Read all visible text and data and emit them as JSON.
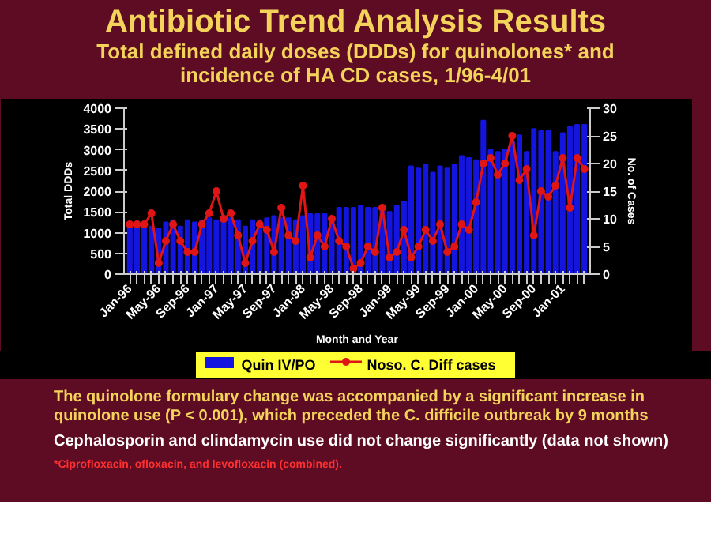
{
  "chart_data": {
    "type": "bar",
    "title": "Antibiotic Trend Analysis Results",
    "subtitle": "Total defined daily doses (DDDs) for quinolones* and incidence of HA CD cases, 1/96-4/01",
    "xlabel": "Month and Year",
    "ylabel": "Total DDDs",
    "y2label": "No. of Cases",
    "categories": [
      "Jan-96",
      null,
      null,
      null,
      "May-96",
      null,
      null,
      null,
      "Sep-96",
      null,
      null,
      null,
      "Jan-97",
      null,
      null,
      null,
      "May-97",
      null,
      null,
      null,
      "Sep-97",
      null,
      null,
      null,
      "Jan-98",
      null,
      null,
      null,
      "May-98",
      null,
      null,
      null,
      "Sep-98",
      null,
      null,
      null,
      "Jan-99",
      null,
      null,
      null,
      "May-99",
      null,
      null,
      null,
      "Sep-99",
      null,
      null,
      null,
      "Jan-00",
      null,
      null,
      null,
      "May-00",
      null,
      null,
      null,
      "Sep-00",
      null,
      null,
      null,
      "Jan-01",
      null,
      null,
      null
    ],
    "series": [
      {
        "name": "Quin IV/PO",
        "color": "#1515e0",
        "values": [
          1150,
          1150,
          1100,
          1150,
          1100,
          1250,
          1300,
          1150,
          1300,
          1250,
          1300,
          1350,
          1300,
          1350,
          1350,
          1300,
          1150,
          1300,
          1300,
          1350,
          1400,
          1350,
          1350,
          1300,
          1400,
          1450,
          1450,
          1450,
          1300,
          1600,
          1600,
          1600,
          1650,
          1600,
          1600,
          1550,
          1500,
          1650,
          1750,
          2600,
          2550,
          2650,
          2450,
          2600,
          2550,
          2650,
          2850,
          2800,
          2750,
          3700,
          3000,
          2950,
          3000,
          3200,
          3350,
          2950,
          3500,
          3450,
          3450,
          2950,
          3400,
          3550,
          3600,
          3600
        ]
      },
      {
        "name": "Noso. C. Diff cases",
        "type": "line",
        "axis": "y2",
        "marker": "circle",
        "color": "#e01515",
        "values": [
          9,
          9,
          9,
          11,
          2,
          6,
          9,
          6,
          4,
          4,
          9,
          11,
          15,
          10,
          11,
          7,
          2,
          6,
          9,
          8,
          4,
          12,
          7,
          6,
          16,
          3,
          7,
          5,
          10,
          6,
          5,
          1,
          2,
          5,
          4,
          12,
          3,
          4,
          8,
          3,
          5,
          8,
          6,
          9,
          4,
          5,
          9,
          8,
          13,
          20,
          21,
          18,
          20,
          25,
          17,
          19,
          7,
          15,
          14,
          16,
          21,
          12,
          21,
          19
        ]
      }
    ],
    "ylim": [
      0,
      4000
    ],
    "yticks": [
      0,
      500,
      1000,
      1500,
      2000,
      2500,
      3000,
      3500,
      4000
    ],
    "y2lim": [
      0,
      30
    ],
    "y2ticks": [
      0,
      5,
      10,
      15,
      20,
      25,
      30
    ],
    "grid": false,
    "legend": "bottom",
    "annotations": [
      "The quinolone formulary change was accompanied by a significant increase in quinolone use (P < 0.001), which preceded the C. difficile outbreak by 9 months",
      "Cephalosporin and clindamycin use did not change significantly (data not shown)",
      "*Ciprofloxacin, ofloxacin, and levofloxacin (combined)."
    ]
  }
}
